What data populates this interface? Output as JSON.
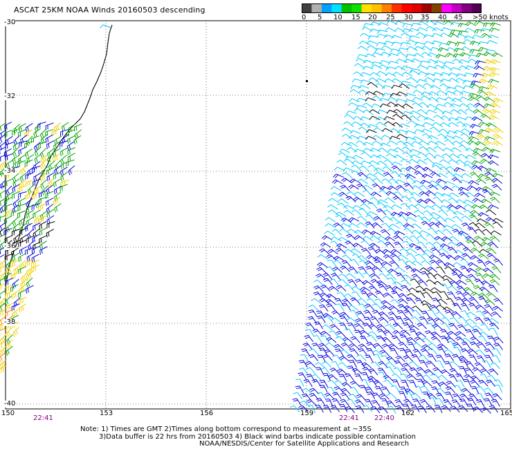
{
  "title": "ASCAT 25KM NOAA Winds 20160503 descending",
  "colorbar": {
    "colors": [
      "#404040",
      "#b0b0b0",
      "#00a0ff",
      "#00e0ff",
      "#00c000",
      "#10e000",
      "#ffe000",
      "#ffc000",
      "#ff8000",
      "#ff3000",
      "#ff0000",
      "#e00000",
      "#a00000",
      "#804000",
      "#ff00ff",
      "#c000c0",
      "#800080",
      "#500050"
    ],
    "labels": [
      "0",
      "5",
      "10",
      "15",
      "20",
      "25",
      "30",
      "35",
      "40",
      "45",
      ">50 knots"
    ]
  },
  "axes": {
    "lat_labels": [
      "-30",
      "-32",
      "-34",
      "-36",
      "-38",
      "-40"
    ],
    "lon_labels": [
      "150",
      "153",
      "156",
      "159",
      "162",
      "165"
    ]
  },
  "times": [
    "22:41",
    "22:41",
    "22:40"
  ],
  "notes": [
    "Note: 1) Times are GMT 2)Times along bottom correspond to measurement at ~35S",
    "3)Data buffer is 22 hrs from 20160503 4) Black wind barbs indicate possible contamination",
    "NOAA/NESDIS/Center for Satellite Applications and Research"
  ],
  "wind_colors": {
    "calm": "#000000",
    "light": "#00c8ff",
    "moderate": "#0000e0",
    "fresh": "#00a000",
    "strong": "#f0d000",
    "gale": "#ff8000"
  }
}
